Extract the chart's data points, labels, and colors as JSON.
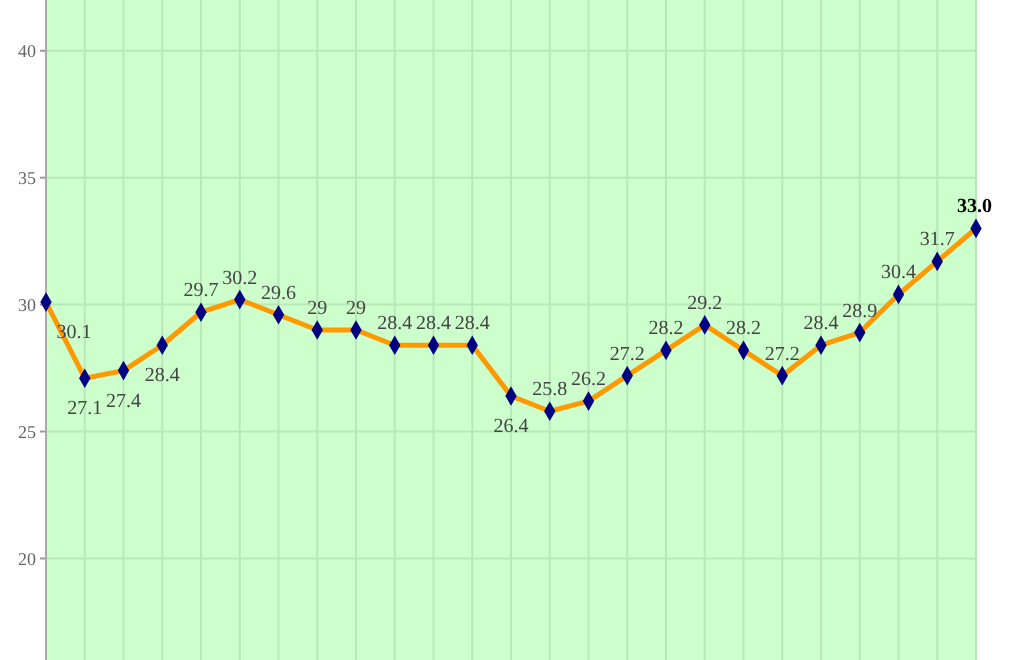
{
  "chart_data": {
    "type": "line",
    "categories": [
      null,
      null,
      null,
      null,
      null,
      null,
      null,
      null,
      null,
      null,
      null,
      null,
      null,
      null,
      null,
      null,
      null,
      null,
      null,
      null,
      null,
      null,
      null,
      null,
      null
    ],
    "series": [
      {
        "color": "#ff9900",
        "values": [
          30.1,
          27.1,
          27.4,
          28.4,
          29.7,
          30.2,
          29.6,
          29,
          29,
          28.4,
          28.4,
          28.4,
          26.4,
          25.8,
          26.2,
          27.2,
          28.2,
          29.2,
          28.2,
          27.2,
          28.4,
          28.9,
          30.4,
          31.7,
          33.0
        ],
        "value_labels": [
          "30.1",
          "27.1",
          "27.4",
          "28.4",
          "29.7",
          "30.2",
          "29.6",
          "29",
          "29",
          "28.4",
          "28.4",
          "28.4",
          "26.4",
          "25.8",
          "26.2",
          "27.2",
          "28.2",
          "29.2",
          "28.2",
          "27.2",
          "28.4",
          "28.9",
          "30.4",
          "31.7",
          "33.0"
        ]
      }
    ],
    "ylim": [
      16,
      42
    ],
    "yticks": [
      20,
      25,
      30,
      35,
      40
    ],
    "grid": true,
    "marker": "diamond",
    "line_style": "solid"
  }
}
